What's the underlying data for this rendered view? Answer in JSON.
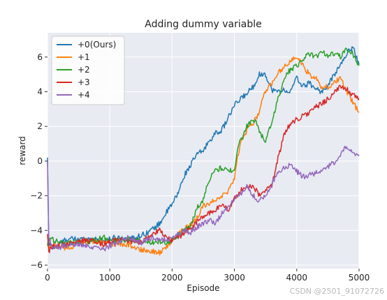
{
  "chart_data": {
    "type": "line",
    "title": "Adding dummy variable",
    "xlabel": "Episode",
    "ylabel": "reward",
    "xlim": [
      0,
      5000
    ],
    "ylim": [
      -6.2,
      7.4
    ],
    "xticks": [
      0,
      1000,
      2000,
      3000,
      4000,
      5000
    ],
    "yticks": [
      -6,
      -4,
      -2,
      0,
      2,
      4,
      6
    ],
    "grid": true,
    "legend_position": "top-left",
    "series": [
      {
        "name": "+0(Ours)",
        "color": "#1f77b4",
        "points": [
          [
            0,
            0.2
          ],
          [
            20,
            -4.8
          ],
          [
            100,
            -5.0
          ],
          [
            300,
            -4.5
          ],
          [
            500,
            -4.5
          ],
          [
            700,
            -4.5
          ],
          [
            900,
            -4.6
          ],
          [
            1100,
            -4.4
          ],
          [
            1300,
            -4.5
          ],
          [
            1500,
            -4.3
          ],
          [
            1700,
            -3.9
          ],
          [
            1800,
            -3.6
          ],
          [
            1900,
            -3.0
          ],
          [
            2000,
            -2.5
          ],
          [
            2100,
            -1.8
          ],
          [
            2200,
            -0.8
          ],
          [
            2300,
            -0.2
          ],
          [
            2400,
            0.4
          ],
          [
            2500,
            0.6
          ],
          [
            2600,
            1.2
          ],
          [
            2700,
            1.6
          ],
          [
            2800,
            1.8
          ],
          [
            2900,
            2.5
          ],
          [
            3000,
            3.2
          ],
          [
            3100,
            3.6
          ],
          [
            3200,
            3.9
          ],
          [
            3300,
            4.3
          ],
          [
            3400,
            5.0
          ],
          [
            3500,
            5.0
          ],
          [
            3600,
            4.1
          ],
          [
            3700,
            4.0
          ],
          [
            3800,
            4.1
          ],
          [
            3900,
            4.0
          ],
          [
            4000,
            4.8
          ],
          [
            4100,
            4.3
          ],
          [
            4200,
            4.5
          ],
          [
            4300,
            4.2
          ],
          [
            4400,
            4.0
          ],
          [
            4500,
            4.3
          ],
          [
            4600,
            5.0
          ],
          [
            4700,
            5.5
          ],
          [
            4800,
            6.2
          ],
          [
            4900,
            6.6
          ],
          [
            5000,
            5.6
          ]
        ]
      },
      {
        "name": "+1",
        "color": "#ff7f0e",
        "points": [
          [
            0,
            -4.3
          ],
          [
            20,
            -4.9
          ],
          [
            100,
            -4.9
          ],
          [
            300,
            -5.0
          ],
          [
            500,
            -4.8
          ],
          [
            700,
            -4.7
          ],
          [
            900,
            -4.7
          ],
          [
            1100,
            -4.8
          ],
          [
            1300,
            -4.8
          ],
          [
            1500,
            -5.1
          ],
          [
            1700,
            -5.2
          ],
          [
            1800,
            -5.3
          ],
          [
            1900,
            -5.0
          ],
          [
            2000,
            -4.6
          ],
          [
            2100,
            -4.2
          ],
          [
            2200,
            -3.9
          ],
          [
            2300,
            -3.7
          ],
          [
            2400,
            -3.3
          ],
          [
            2500,
            -2.6
          ],
          [
            2600,
            -2.4
          ],
          [
            2700,
            -2.2
          ],
          [
            2800,
            -2.0
          ],
          [
            2900,
            -1.8
          ],
          [
            3000,
            -1.0
          ],
          [
            3050,
            0.2
          ],
          [
            3100,
            1.0
          ],
          [
            3200,
            1.8
          ],
          [
            3300,
            2.2
          ],
          [
            3400,
            2.8
          ],
          [
            3450,
            3.7
          ],
          [
            3500,
            4.0
          ],
          [
            3600,
            4.5
          ],
          [
            3700,
            5.1
          ],
          [
            3800,
            5.4
          ],
          [
            3900,
            5.8
          ],
          [
            4000,
            6.0
          ],
          [
            4050,
            5.8
          ],
          [
            4100,
            5.5
          ],
          [
            4200,
            5.0
          ],
          [
            4300,
            4.8
          ],
          [
            4400,
            4.2
          ],
          [
            4500,
            4.3
          ],
          [
            4600,
            4.5
          ],
          [
            4700,
            4.8
          ],
          [
            4800,
            4.0
          ],
          [
            4900,
            3.4
          ],
          [
            5000,
            2.8
          ]
        ]
      },
      {
        "name": "+2",
        "color": "#2ca02c",
        "points": [
          [
            0,
            -4.9
          ],
          [
            20,
            -4.4
          ],
          [
            100,
            -4.6
          ],
          [
            300,
            -4.7
          ],
          [
            500,
            -4.7
          ],
          [
            700,
            -4.6
          ],
          [
            900,
            -4.4
          ],
          [
            1100,
            -4.6
          ],
          [
            1300,
            -4.5
          ],
          [
            1500,
            -4.6
          ],
          [
            1700,
            -4.7
          ],
          [
            1800,
            -4.6
          ],
          [
            1900,
            -4.7
          ],
          [
            2000,
            -4.6
          ],
          [
            2100,
            -4.3
          ],
          [
            2200,
            -4.0
          ],
          [
            2300,
            -3.7
          ],
          [
            2400,
            -2.7
          ],
          [
            2500,
            -2.2
          ],
          [
            2600,
            -1.0
          ],
          [
            2700,
            -0.5
          ],
          [
            2800,
            -0.4
          ],
          [
            2900,
            -0.6
          ],
          [
            3000,
            -0.4
          ],
          [
            3050,
            0.6
          ],
          [
            3100,
            1.2
          ],
          [
            3200,
            2.0
          ],
          [
            3300,
            2.4
          ],
          [
            3350,
            2.3
          ],
          [
            3400,
            1.6
          ],
          [
            3500,
            1.2
          ],
          [
            3600,
            2.2
          ],
          [
            3700,
            3.6
          ],
          [
            3800,
            4.8
          ],
          [
            3900,
            5.3
          ],
          [
            4000,
            5.5
          ],
          [
            4100,
            5.9
          ],
          [
            4200,
            6.2
          ],
          [
            4300,
            6.0
          ],
          [
            4400,
            6.3
          ],
          [
            4500,
            6.1
          ],
          [
            4600,
            6.2
          ],
          [
            4700,
            6.0
          ],
          [
            4800,
            6.5
          ],
          [
            4900,
            6.2
          ],
          [
            5000,
            5.5
          ]
        ]
      },
      {
        "name": "+3",
        "color": "#d62728",
        "points": [
          [
            0,
            -4.2
          ],
          [
            20,
            -5.2
          ],
          [
            100,
            -4.9
          ],
          [
            300,
            -4.8
          ],
          [
            500,
            -4.6
          ],
          [
            700,
            -4.6
          ],
          [
            900,
            -4.8
          ],
          [
            1100,
            -4.5
          ],
          [
            1300,
            -4.6
          ],
          [
            1500,
            -4.7
          ],
          [
            1700,
            -4.2
          ],
          [
            1800,
            -4.0
          ],
          [
            1900,
            -4.4
          ],
          [
            2000,
            -4.6
          ],
          [
            2100,
            -4.4
          ],
          [
            2200,
            -4.1
          ],
          [
            2300,
            -3.9
          ],
          [
            2400,
            -3.5
          ],
          [
            2500,
            -3.2
          ],
          [
            2600,
            -3.0
          ],
          [
            2700,
            -2.8
          ],
          [
            2800,
            -2.5
          ],
          [
            2900,
            -2.8
          ],
          [
            3000,
            -2.2
          ],
          [
            3100,
            -1.7
          ],
          [
            3200,
            -1.5
          ],
          [
            3300,
            -1.4
          ],
          [
            3400,
            -2.0
          ],
          [
            3500,
            -1.7
          ],
          [
            3600,
            -1.4
          ],
          [
            3700,
            0.2
          ],
          [
            3800,
            1.5
          ],
          [
            3900,
            2.2
          ],
          [
            4000,
            2.4
          ],
          [
            4100,
            2.6
          ],
          [
            4200,
            2.8
          ],
          [
            4300,
            3.1
          ],
          [
            4400,
            3.3
          ],
          [
            4500,
            3.6
          ],
          [
            4600,
            3.9
          ],
          [
            4700,
            4.3
          ],
          [
            4800,
            4.2
          ],
          [
            4900,
            3.8
          ],
          [
            5000,
            3.6
          ]
        ]
      },
      {
        "name": "+4",
        "color": "#9467bd",
        "points": [
          [
            0,
            0.0
          ],
          [
            20,
            -4.5
          ],
          [
            100,
            -5.0
          ],
          [
            300,
            -4.9
          ],
          [
            500,
            -4.8
          ],
          [
            700,
            -5.0
          ],
          [
            900,
            -5.1
          ],
          [
            1100,
            -4.7
          ],
          [
            1300,
            -4.4
          ],
          [
            1500,
            -4.7
          ],
          [
            1700,
            -4.4
          ],
          [
            1800,
            -4.6
          ],
          [
            1900,
            -4.5
          ],
          [
            2000,
            -4.4
          ],
          [
            2100,
            -4.2
          ],
          [
            2200,
            -4.0
          ],
          [
            2300,
            -4.1
          ],
          [
            2400,
            -3.8
          ],
          [
            2500,
            -3.6
          ],
          [
            2600,
            -3.4
          ],
          [
            2700,
            -3.6
          ],
          [
            2800,
            -3.0
          ],
          [
            2900,
            -2.6
          ],
          [
            3000,
            -2.2
          ],
          [
            3100,
            -1.9
          ],
          [
            3200,
            -1.5
          ],
          [
            3300,
            -2.0
          ],
          [
            3400,
            -2.3
          ],
          [
            3500,
            -2.0
          ],
          [
            3600,
            -1.3
          ],
          [
            3700,
            -0.6
          ],
          [
            3800,
            -0.4
          ],
          [
            3900,
            -0.2
          ],
          [
            4000,
            -0.6
          ],
          [
            4100,
            -0.9
          ],
          [
            4200,
            -0.8
          ],
          [
            4300,
            -0.7
          ],
          [
            4400,
            -0.5
          ],
          [
            4500,
            -0.3
          ],
          [
            4600,
            -0.1
          ],
          [
            4700,
            0.4
          ],
          [
            4800,
            0.8
          ],
          [
            4900,
            0.5
          ],
          [
            5000,
            0.3
          ]
        ]
      }
    ]
  },
  "watermark": "CSDN @2501_91072726"
}
